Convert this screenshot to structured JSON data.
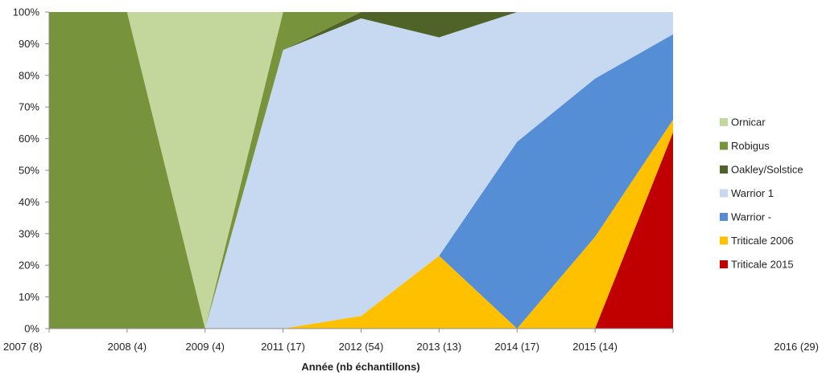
{
  "chart_data": {
    "type": "area",
    "stacked": "percent",
    "title": "",
    "xlabel": "Année (nb échantillons)",
    "ylabel": "",
    "ylim": [
      0,
      100
    ],
    "y_tick_labels": [
      "0%",
      "10%",
      "20%",
      "30%",
      "40%",
      "50%",
      "60%",
      "70%",
      "80%",
      "90%",
      "100%"
    ],
    "categories": [
      "2007 (8)",
      "2008 (4)",
      "2009 (4)",
      "2011 (17)",
      "2012 (54)",
      "2013 (13)",
      "2014 (17)",
      "2015 (14)",
      "2016 (29)"
    ],
    "legend_position": "right",
    "series": [
      {
        "name": "Triticale 2015",
        "color": "#c00000",
        "values": [
          0,
          0,
          0,
          0,
          0,
          0,
          0,
          0,
          62
        ]
      },
      {
        "name": "Triticale 2006",
        "color": "#ffc000",
        "values": [
          0,
          0,
          0,
          0,
          4,
          23,
          0,
          29,
          4
        ]
      },
      {
        "name": "Warrior -",
        "color": "#558ed5",
        "values": [
          0,
          0,
          0,
          0,
          0,
          0,
          59,
          50,
          27
        ]
      },
      {
        "name": "Warrior 1",
        "color": "#c6d9f1",
        "values": [
          0,
          0,
          0,
          88,
          94,
          69,
          41,
          21,
          7
        ]
      },
      {
        "name": "Oakley/Solstice",
        "color": "#4f6228",
        "values": [
          0,
          0,
          0,
          0,
          2,
          8,
          0,
          0,
          0
        ]
      },
      {
        "name": "Robigus",
        "color": "#77933c",
        "values": [
          100,
          100,
          0,
          12,
          0,
          0,
          0,
          0,
          0
        ]
      },
      {
        "name": "Ornicar",
        "color": "#c3d69b",
        "values": [
          0,
          0,
          100,
          0,
          0,
          0,
          0,
          0,
          0
        ]
      }
    ],
    "legend_order": [
      "Ornicar",
      "Robigus",
      "Oakley/Solstice",
      "Warrior 1",
      "Warrior -",
      "Triticale 2006",
      "Triticale 2015"
    ]
  }
}
